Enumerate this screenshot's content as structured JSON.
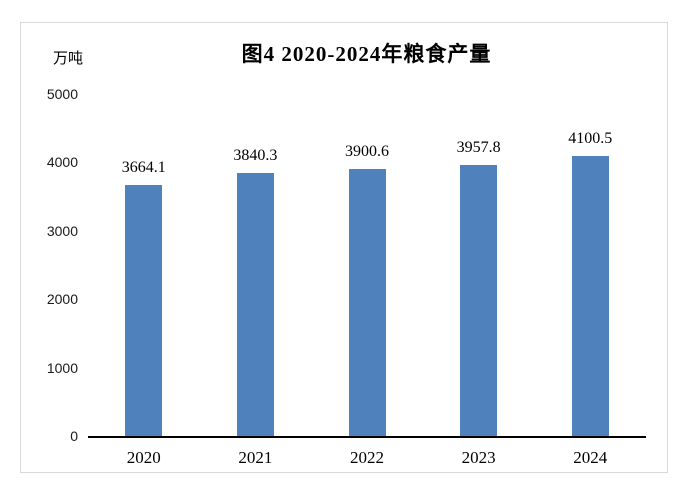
{
  "chart_data": {
    "type": "bar",
    "title": "图4 2020-2024年粮食产量",
    "unit_label": "万吨",
    "categories": [
      "2020",
      "2021",
      "2022",
      "2023",
      "2024"
    ],
    "values": [
      3664.1,
      3840.3,
      3900.6,
      3957.8,
      4100.5
    ],
    "data_labels": [
      "3664.1",
      "3840.3",
      "3900.6",
      "3957.8",
      "4100.5"
    ],
    "yticks": [
      0,
      1000,
      2000,
      3000,
      4000,
      5000
    ],
    "ylim": [
      0,
      5000
    ],
    "xlabel": "",
    "ylabel": "万吨",
    "grid": false,
    "legend": "none"
  },
  "colors": {
    "bar": "#4F81BD",
    "axis": "#000000",
    "frame_border": "#D9D9D9",
    "background": "#FFFFFF",
    "text": "#000000"
  }
}
